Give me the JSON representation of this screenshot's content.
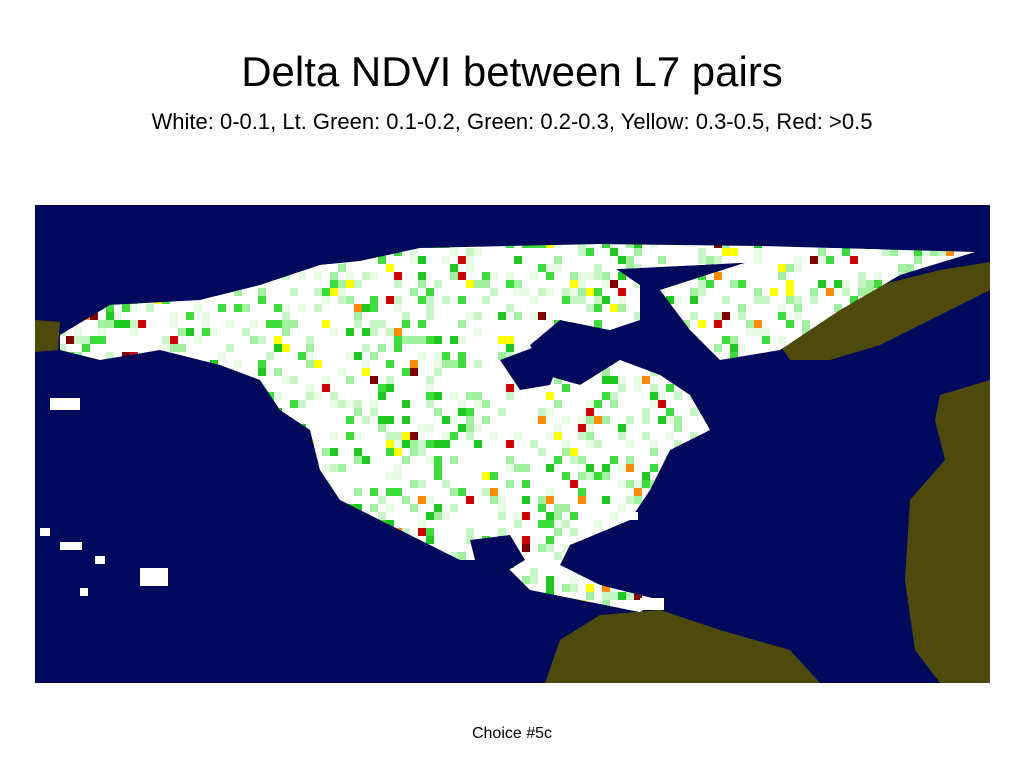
{
  "slide": {
    "title": "Delta NDVI between L7 pairs",
    "subtitle": "White: 0-0.1, Lt. Green: 0.1-0.2, Green: 0.2-0.3, Yellow: 0.3-0.5, Red: >0.5",
    "footer": "Choice #5c"
  }
}
